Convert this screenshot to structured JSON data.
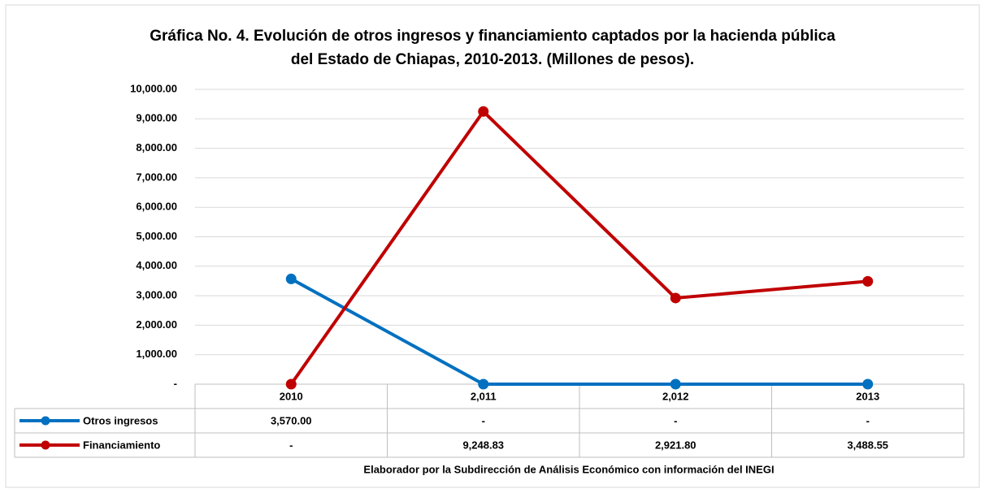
{
  "chart_data": {
    "type": "line",
    "title": [
      "Gráfica No. 4. Evolución de otros ingresos y  financiamiento captados por la hacienda pública",
      "del Estado de Chiapas, 2010-2013. (Millones de pesos)."
    ],
    "categories": [
      "2010",
      "2,011",
      "2,012",
      "2013"
    ],
    "series": [
      {
        "name": "Otros ingresos",
        "color": "#0070c0",
        "values": [
          3570,
          0,
          0,
          0
        ],
        "value_labels": [
          "3,570.00",
          "-",
          "-",
          "-"
        ]
      },
      {
        "name": "Financiamiento",
        "color": "#c00000",
        "values": [
          0,
          9248.83,
          2921.8,
          3488.55
        ],
        "value_labels": [
          "-",
          "9,248.83",
          "2,921.80",
          "3,488.55"
        ]
      }
    ],
    "ylim": [
      0,
      10000
    ],
    "yticks": [
      {
        "value": 0,
        "label": "-"
      },
      {
        "value": 1000,
        "label": "1,000.00"
      },
      {
        "value": 2000,
        "label": "2,000.00"
      },
      {
        "value": 3000,
        "label": "3,000.00"
      },
      {
        "value": 4000,
        "label": "4,000.00"
      },
      {
        "value": 5000,
        "label": "5,000.00"
      },
      {
        "value": 6000,
        "label": "6,000.00"
      },
      {
        "value": 7000,
        "label": "7,000.00"
      },
      {
        "value": 8000,
        "label": "8,000.00"
      },
      {
        "value": 9000,
        "label": "9,000.00"
      },
      {
        "value": 10000,
        "label": "10,000.00"
      }
    ],
    "grid": true,
    "source": "Elaborador por la Subdirección de Análisis Económico con información del INEGI"
  }
}
